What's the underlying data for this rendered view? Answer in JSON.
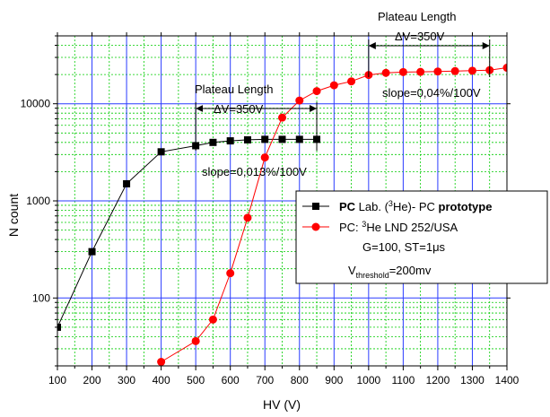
{
  "chart_data": {
    "type": "line",
    "xlabel": "HV (V)",
    "ylabel": "N count",
    "xlim": [
      100,
      1400
    ],
    "ylim": [
      20,
      50000
    ],
    "yscale": "log",
    "x_ticks": [
      100,
      200,
      300,
      400,
      500,
      600,
      700,
      800,
      900,
      1000,
      1100,
      1200,
      1300,
      1400
    ],
    "y_ticks": [
      {
        "value": 100,
        "label": "100"
      },
      {
        "value": 1000,
        "label": "1000"
      },
      {
        "value": 10000,
        "label": "10000"
      }
    ],
    "grid": true,
    "legend_position": "right",
    "series": [
      {
        "legend_bold_prefix": "PC",
        "legend_text": " Lab. (",
        "legend_sup": "3",
        "legend_after_sup": "He)- PC ",
        "legend_bold_suffix": "prototype",
        "color": "#000000",
        "marker": "square",
        "x": [
          100,
          200,
          300,
          400,
          500,
          550,
          600,
          650,
          700,
          750,
          800,
          850
        ],
        "y": [
          50,
          300,
          1500,
          3200,
          3700,
          4000,
          4150,
          4250,
          4300,
          4300,
          4300,
          4300
        ]
      },
      {
        "legend_text": "PC: ",
        "legend_sup": "3",
        "legend_after_sup": "He LND 252/USA",
        "color": "#ff0000",
        "marker": "circle",
        "x": [
          400,
          500,
          550,
          600,
          650,
          700,
          750,
          800,
          850,
          900,
          950,
          1000,
          1050,
          1100,
          1150,
          1200,
          1250,
          1300,
          1350,
          1400
        ],
        "y": [
          22,
          36,
          60,
          180,
          670,
          2800,
          7200,
          10800,
          13500,
          15500,
          17000,
          19800,
          20800,
          21200,
          21300,
          21500,
          21700,
          21900,
          22200,
          23500
        ]
      }
    ],
    "legend_extra": {
      "line1": "G=100, ST=1",
      "line1_unit": "μs",
      "line2_prefix": "V",
      "line2_sub": "threshold",
      "line2_suffix": "=200mv"
    },
    "annotations": [
      {
        "title": "Plateau Length",
        "delta": "ΔV=350V",
        "slope": "slope=0,013%/100V",
        "x_from": 500,
        "x_to": 850
      },
      {
        "title": "Plateau Length",
        "delta": "ΔV=350V",
        "slope": "slope=0,04%/100V",
        "x_from": 1000,
        "x_to": 1350
      }
    ]
  }
}
